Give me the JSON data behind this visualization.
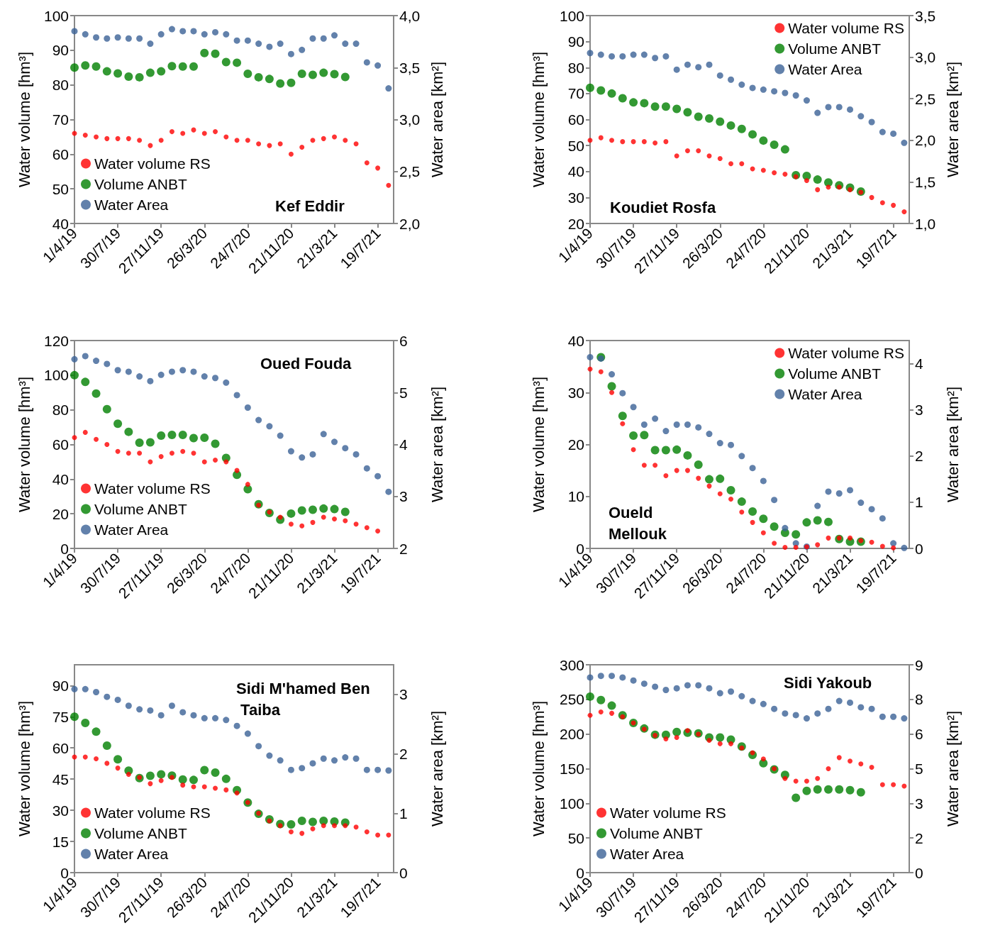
{
  "chart_data": [
    {
      "type": "scatter",
      "title": "Kef Eddir",
      "ylabel": "Water volume [hm³]",
      "y2label": "Water area [km²]",
      "legend": "bottom left",
      "marker": "circle",
      "x": [
        "2019-04-01",
        "2019-05-01",
        "2019-05-31",
        "2019-06-30",
        "2019-07-30",
        "2019-08-29",
        "2019-09-28",
        "2019-10-28",
        "2019-11-27",
        "2019-12-27",
        "2020-01-26",
        "2020-02-25",
        "2020-03-26",
        "2020-04-25",
        "2020-05-25",
        "2020-06-24",
        "2020-07-24",
        "2020-08-23",
        "2020-09-22",
        "2020-10-22",
        "2020-11-21",
        "2020-12-21",
        "2021-01-20",
        "2021-02-19",
        "2021-03-21",
        "2021-04-20",
        "2021-05-20",
        "2021-06-19",
        "2021-07-19",
        "2021-08-18"
      ],
      "xlim": [
        "2019-04-01",
        "2021-09-01"
      ],
      "xticks": [
        {
          "value": "2019-04-01",
          "label": "1/4/19"
        },
        {
          "value": "2019-07-30",
          "label": "30/7/19"
        },
        {
          "value": "2019-11-27",
          "label": "27/11/19"
        },
        {
          "value": "2020-03-26",
          "label": "26/3/20"
        },
        {
          "value": "2020-07-24",
          "label": "24/7/20"
        },
        {
          "value": "2020-11-21",
          "label": "21/11/20"
        },
        {
          "value": "2021-03-21",
          "label": "21/3/21"
        },
        {
          "value": "2021-07-19",
          "label": "19/7/21"
        }
      ],
      "ylim": [
        40,
        100
      ],
      "yticks": [
        40,
        50,
        60,
        70,
        80,
        90,
        100
      ],
      "y2lim": [
        2,
        4
      ],
      "y2ticks": [
        {
          "value": 2,
          "label": "2,0"
        },
        {
          "value": 2.5,
          "label": "2,5"
        },
        {
          "value": 3,
          "label": "3,0"
        },
        {
          "value": 3.5,
          "label": "3,5"
        },
        {
          "value": 4,
          "label": "4,0"
        }
      ],
      "series": [
        {
          "name": "Water volume RS",
          "color": "#ff0000",
          "values": [
            66,
            65.5,
            65,
            64.5,
            64.5,
            64.5,
            64,
            62.5,
            64,
            66.5,
            66,
            67,
            66,
            66.5,
            65,
            64,
            64,
            63,
            62.5,
            63,
            60,
            62,
            64,
            64.5,
            65,
            64,
            63,
            57.5,
            56,
            51
          ]
        },
        {
          "name": "Volume ANBT",
          "color": "#008000",
          "values": [
            85,
            85.6,
            85.3,
            83.9,
            83.3,
            82.4,
            82.2,
            83.5,
            83.9,
            85.4,
            85.3,
            85.3,
            89.2,
            89,
            86.6,
            86.4,
            83.2,
            82.2,
            81.7,
            80.4,
            80.6,
            83.2,
            82.9,
            83.5,
            83.1,
            82.3,
            null,
            null,
            null,
            null
          ]
        },
        {
          "name": "Water Area",
          "color": "#3b6296",
          "axis": "y2",
          "values": [
            3.85,
            3.82,
            3.79,
            3.78,
            3.79,
            3.78,
            3.78,
            3.73,
            3.82,
            3.87,
            3.85,
            3.85,
            3.82,
            3.84,
            3.82,
            3.76,
            3.76,
            3.73,
            3.7,
            3.73,
            3.63,
            3.67,
            3.78,
            3.78,
            3.81,
            3.73,
            3.73,
            3.55,
            3.52,
            3.3
          ]
        }
      ]
    },
    {
      "type": "scatter",
      "title": "Koudiet Rosfa",
      "ylabel": "Water volume [hm³]",
      "y2label": "Water area [km²]",
      "legend": "top right",
      "marker": "circle",
      "x": [
        "2019-04-01",
        "2019-05-01",
        "2019-05-31",
        "2019-06-30",
        "2019-07-30",
        "2019-08-29",
        "2019-09-28",
        "2019-10-28",
        "2019-11-27",
        "2019-12-27",
        "2020-01-26",
        "2020-02-25",
        "2020-03-26",
        "2020-04-25",
        "2020-05-25",
        "2020-06-24",
        "2020-07-24",
        "2020-08-23",
        "2020-09-22",
        "2020-10-22",
        "2020-11-21",
        "2020-12-21",
        "2021-01-20",
        "2021-02-19",
        "2021-03-21",
        "2021-04-20",
        "2021-05-20",
        "2021-06-19",
        "2021-07-19",
        "2021-08-18"
      ],
      "xlim": [
        "2019-04-01",
        "2021-09-01"
      ],
      "xticks": [
        {
          "value": "2019-04-01",
          "label": "1/4/19"
        },
        {
          "value": "2019-07-30",
          "label": "30/7/19"
        },
        {
          "value": "2019-11-27",
          "label": "27/11/19"
        },
        {
          "value": "2020-03-26",
          "label": "26/3/20"
        },
        {
          "value": "2020-07-24",
          "label": "24/7/20"
        },
        {
          "value": "2020-11-21",
          "label": "21/11/20"
        },
        {
          "value": "2021-03-21",
          "label": "21/3/21"
        },
        {
          "value": "2021-07-19",
          "label": "19/7/21"
        }
      ],
      "ylim": [
        20,
        100
      ],
      "yticks": [
        20,
        30,
        40,
        50,
        60,
        70,
        80,
        90,
        100
      ],
      "y2lim": [
        1,
        3.5
      ],
      "y2ticks": [
        {
          "value": 1,
          "label": "1,0"
        },
        {
          "value": 1.5,
          "label": "1,5"
        },
        {
          "value": 2,
          "label": "2,0"
        },
        {
          "value": 2.5,
          "label": "2,5"
        },
        {
          "value": 3,
          "label": "3,0"
        },
        {
          "value": 3.5,
          "label": "3,5"
        }
      ],
      "series": [
        {
          "name": "Water volume RS",
          "color": "#ff0000",
          "values": [
            52,
            53,
            52,
            51.5,
            51.5,
            51.5,
            51,
            51.5,
            46,
            48,
            48,
            46,
            45,
            43,
            43,
            41,
            40.5,
            39.5,
            39,
            38,
            36.5,
            33,
            34,
            34,
            33,
            32,
            30,
            28,
            27,
            24.5
          ]
        },
        {
          "name": "Volume ANBT",
          "color": "#008000",
          "values": [
            72.2,
            71.2,
            70,
            68.2,
            66.6,
            66.3,
            65,
            65,
            64.1,
            62.8,
            61.1,
            60.4,
            59.2,
            57.7,
            56.4,
            54.3,
            51.9,
            50.3,
            48.5,
            38.6,
            38.3,
            36.9,
            35.8,
            34.7,
            33.8,
            32.3,
            null,
            null,
            null,
            null
          ]
        },
        {
          "name": "Water Area",
          "color": "#3b6296",
          "axis": "y2",
          "values": [
            3.05,
            3.03,
            3.01,
            3.01,
            3.03,
            3.03,
            2.99,
            3.01,
            2.85,
            2.91,
            2.88,
            2.91,
            2.78,
            2.73,
            2.67,
            2.63,
            2.61,
            2.59,
            2.57,
            2.54,
            2.48,
            2.33,
            2.4,
            2.4,
            2.37,
            2.29,
            2.22,
            2.1,
            2.08,
            1.97
          ]
        }
      ]
    },
    {
      "type": "scatter",
      "title": "Oued Fouda",
      "ylabel": "Water volume [hm³]",
      "y2label": "Water area [km²]",
      "legend": "bottom left",
      "marker": "circle",
      "x": [
        "2019-04-01",
        "2019-05-01",
        "2019-05-31",
        "2019-06-30",
        "2019-07-30",
        "2019-08-29",
        "2019-09-28",
        "2019-10-28",
        "2019-11-27",
        "2019-12-27",
        "2020-01-26",
        "2020-02-25",
        "2020-03-26",
        "2020-04-25",
        "2020-05-25",
        "2020-06-24",
        "2020-07-24",
        "2020-08-23",
        "2020-09-22",
        "2020-10-22",
        "2020-11-21",
        "2020-12-21",
        "2021-01-20",
        "2021-02-19",
        "2021-03-21",
        "2021-04-20",
        "2021-05-20",
        "2021-06-19",
        "2021-07-19",
        "2021-08-18"
      ],
      "xlim": [
        "2019-04-01",
        "2021-09-01"
      ],
      "xticks": [
        {
          "value": "2019-04-01",
          "label": "1/4/19"
        },
        {
          "value": "2019-07-30",
          "label": "30/7/19"
        },
        {
          "value": "2019-11-27",
          "label": "27/11/19"
        },
        {
          "value": "2020-03-26",
          "label": "26/3/20"
        },
        {
          "value": "2020-07-24",
          "label": "24/7/20"
        },
        {
          "value": "2020-11-21",
          "label": "21/11/20"
        },
        {
          "value": "2021-03-21",
          "label": "21/3/21"
        },
        {
          "value": "2021-07-19",
          "label": "19/7/21"
        }
      ],
      "ylim": [
        0,
        120
      ],
      "yticks": [
        0,
        20,
        40,
        60,
        80,
        100,
        120
      ],
      "y2lim": [
        2,
        6
      ],
      "y2ticks": [
        2,
        3,
        4,
        5,
        6
      ],
      "series": [
        {
          "name": "Water volume RS",
          "color": "#ff0000",
          "values": [
            64,
            67,
            63,
            60,
            56,
            55,
            55,
            50,
            53,
            55,
            56,
            55,
            50,
            51,
            50,
            45,
            37,
            25,
            21,
            18,
            14,
            13,
            15,
            18,
            17,
            16,
            14,
            12,
            10,
            null
          ]
        },
        {
          "name": "Volume ANBT",
          "color": "#008000",
          "values": [
            100,
            96.1,
            89.4,
            80.4,
            72,
            67.3,
            61,
            61.2,
            65.1,
            65.5,
            65.5,
            63.7,
            63.9,
            60.4,
            52.2,
            42.5,
            34.2,
            25.5,
            20.5,
            16.6,
            20.1,
            21.9,
            22.3,
            23,
            22.7,
            21.1,
            null,
            null,
            null,
            null
          ]
        },
        {
          "name": "Water Area",
          "color": "#3b6296",
          "axis": "y2",
          "values": [
            5.64,
            5.7,
            5.61,
            5.55,
            5.43,
            5.4,
            5.31,
            5.22,
            5.34,
            5.4,
            5.43,
            5.4,
            5.31,
            5.28,
            5.19,
            4.95,
            4.71,
            4.47,
            4.35,
            4.17,
            3.87,
            3.75,
            3.81,
            4.2,
            4.05,
            3.93,
            3.81,
            3.54,
            3.39,
            3.09
          ]
        }
      ]
    },
    {
      "type": "scatter",
      "title": "Oueld Mellouk",
      "ylabel": "Water volume [hm³]",
      "y2label": "Water area [km²]",
      "legend": "top right",
      "marker": "circle",
      "x": [
        "2019-04-01",
        "2019-05-01",
        "2019-05-31",
        "2019-06-30",
        "2019-07-30",
        "2019-08-29",
        "2019-09-28",
        "2019-10-28",
        "2019-11-27",
        "2019-12-27",
        "2020-01-26",
        "2020-02-25",
        "2020-03-26",
        "2020-04-25",
        "2020-05-25",
        "2020-06-24",
        "2020-07-24",
        "2020-08-23",
        "2020-09-22",
        "2020-10-22",
        "2020-11-21",
        "2020-12-21",
        "2021-01-20",
        "2021-02-19",
        "2021-03-21",
        "2021-04-20",
        "2021-05-20",
        "2021-06-19",
        "2021-07-19",
        "2021-08-18"
      ],
      "xlim": [
        "2019-04-01",
        "2021-09-01"
      ],
      "xticks": [
        {
          "value": "2019-04-01",
          "label": "1/4/19"
        },
        {
          "value": "2019-07-30",
          "label": "30/7/19"
        },
        {
          "value": "2019-11-27",
          "label": "27/11/19"
        },
        {
          "value": "2020-03-26",
          "label": "26/3/20"
        },
        {
          "value": "2020-07-24",
          "label": "24/7/20"
        },
        {
          "value": "2020-11-21",
          "label": "21/11/20"
        },
        {
          "value": "2021-03-21",
          "label": "21/3/21"
        },
        {
          "value": "2021-07-19",
          "label": "19/7/21"
        }
      ],
      "ylim": [
        0,
        40
      ],
      "yticks": [
        0,
        10,
        20,
        30,
        40
      ],
      "y2lim": [
        0,
        4.5
      ],
      "y2ticks": [
        0,
        1,
        2,
        3,
        4
      ],
      "series": [
        {
          "name": "Water volume RS",
          "color": "#ff0000",
          "values": [
            34.5,
            34,
            30,
            24,
            19,
            16,
            16,
            14,
            15,
            15,
            13.5,
            12,
            10.5,
            9.5,
            7,
            5,
            3,
            1,
            0.2,
            0.2,
            0.3,
            0.7,
            2,
            2,
            2,
            1.5,
            1.2,
            0.4,
            0.1,
            null
          ]
        },
        {
          "name": "Volume ANBT",
          "color": "#008000",
          "values": [
            null,
            36.8,
            31.2,
            25.5,
            21.7,
            21.8,
            18.9,
            18.9,
            19,
            17.9,
            16.1,
            13.3,
            13.4,
            11.2,
            9,
            7.1,
            5.7,
            4.2,
            3,
            2.7,
            5,
            5.4,
            5.1,
            1.8,
            1.3,
            1.3,
            null,
            null,
            null,
            null
          ]
        },
        {
          "name": "Water Area",
          "color": "#3b6296",
          "axis": "y2",
          "values": [
            4.14,
            4.11,
            3.77,
            3.36,
            3.06,
            2.68,
            2.81,
            2.54,
            2.68,
            2.68,
            2.62,
            2.48,
            2.28,
            2.24,
            2,
            1.74,
            1.46,
            1.05,
            0.44,
            0.11,
            0.04,
            0.92,
            1.23,
            1.19,
            1.26,
            0.99,
            0.85,
            0.65,
            0.11,
            0.01
          ]
        }
      ]
    },
    {
      "type": "scatter",
      "title": "Sidi M'hamed Ben Taiba",
      "ylabel": "Water volume [hm³]",
      "y2label": "Water area [km²]",
      "legend": "bottom left",
      "marker": "circle",
      "x": [
        "2019-04-01",
        "2019-05-01",
        "2019-05-31",
        "2019-06-30",
        "2019-07-30",
        "2019-08-29",
        "2019-09-28",
        "2019-10-28",
        "2019-11-27",
        "2019-12-27",
        "2020-01-26",
        "2020-02-25",
        "2020-03-26",
        "2020-04-25",
        "2020-05-25",
        "2020-06-24",
        "2020-07-24",
        "2020-08-23",
        "2020-09-22",
        "2020-10-22",
        "2020-11-21",
        "2020-12-21",
        "2021-01-20",
        "2021-02-19",
        "2021-03-21",
        "2021-04-20",
        "2021-05-20",
        "2021-06-19",
        "2021-07-19",
        "2021-08-18"
      ],
      "xlim": [
        "2019-04-01",
        "2021-09-01"
      ],
      "xticks": [
        {
          "value": "2019-04-01",
          "label": "1/4/19"
        },
        {
          "value": "2019-07-30",
          "label": "30/7/19"
        },
        {
          "value": "2019-11-27",
          "label": "27/11/19"
        },
        {
          "value": "2020-03-26",
          "label": "26/3/20"
        },
        {
          "value": "2020-07-24",
          "label": "24/7/20"
        },
        {
          "value": "2020-11-21",
          "label": "21/11/20"
        },
        {
          "value": "2021-03-21",
          "label": "21/3/21"
        },
        {
          "value": "2021-07-19",
          "label": "19/7/21"
        }
      ],
      "ylim": [
        0,
        100
      ],
      "yticks": [
        0,
        15,
        30,
        45,
        60,
        75,
        90
      ],
      "y2lim": [
        0,
        3.5
      ],
      "y2ticks": [
        0,
        1,
        2,
        3
      ],
      "series": [
        {
          "name": "Water volume RS",
          "color": "#ff0000",
          "values": [
            55.6,
            55.6,
            54.8,
            52.6,
            50.3,
            47.3,
            45.8,
            42.8,
            44.3,
            45.8,
            42.1,
            41.3,
            41.3,
            40.6,
            39.8,
            38.3,
            33.8,
            28.6,
            24.9,
            22.6,
            19.6,
            18.9,
            21.1,
            22.6,
            22.6,
            22.6,
            21.9,
            19.6,
            18.1,
            18.1
          ]
        },
        {
          "name": "Volume ANBT",
          "color": "#008000",
          "values": [
            75,
            72,
            67.8,
            61.1,
            54.5,
            49.1,
            45.5,
            46.6,
            47.3,
            46.7,
            44.8,
            44.6,
            49.3,
            48.1,
            45.1,
            39.7,
            33.7,
            28.3,
            25.6,
            23.4,
            23.2,
            24.9,
            24.4,
            24.9,
            24.6,
            24.1,
            null,
            null,
            null,
            null
          ]
        },
        {
          "name": "Water Area",
          "color": "#3b6296",
          "axis": "y2",
          "values": [
            3.09,
            3.09,
            3.04,
            2.96,
            2.91,
            2.81,
            2.75,
            2.73,
            2.65,
            2.81,
            2.7,
            2.65,
            2.6,
            2.6,
            2.57,
            2.47,
            2.34,
            2.13,
            1.97,
            1.89,
            1.73,
            1.76,
            1.84,
            1.92,
            1.89,
            1.94,
            1.92,
            1.73,
            1.73,
            1.72
          ]
        }
      ]
    },
    {
      "type": "scatter",
      "title": "Sidi Yakoub",
      "ylabel": "Water volume [hm³]",
      "y2label": "Water area [km²]",
      "legend": "bottom left",
      "marker": "circle",
      "x": [
        "2019-04-01",
        "2019-05-01",
        "2019-05-31",
        "2019-06-30",
        "2019-07-30",
        "2019-08-29",
        "2019-09-28",
        "2019-10-28",
        "2019-11-27",
        "2019-12-27",
        "2020-01-26",
        "2020-02-25",
        "2020-03-26",
        "2020-04-25",
        "2020-05-25",
        "2020-06-24",
        "2020-07-24",
        "2020-08-23",
        "2020-09-22",
        "2020-10-22",
        "2020-11-21",
        "2020-12-21",
        "2021-01-20",
        "2021-02-19",
        "2021-03-21",
        "2021-04-20",
        "2021-05-20",
        "2021-06-19",
        "2021-07-19",
        "2021-08-18"
      ],
      "xlim": [
        "2019-04-01",
        "2021-09-01"
      ],
      "xticks": [
        {
          "value": "2019-04-01",
          "label": "1/4/19"
        },
        {
          "value": "2019-07-30",
          "label": "30/7/19"
        },
        {
          "value": "2019-11-27",
          "label": "27/11/19"
        },
        {
          "value": "2020-03-26",
          "label": "26/3/20"
        },
        {
          "value": "2020-07-24",
          "label": "24/7/20"
        },
        {
          "value": "2020-11-21",
          "label": "21/11/20"
        },
        {
          "value": "2021-03-21",
          "label": "21/3/21"
        },
        {
          "value": "2021-07-19",
          "label": "19/7/21"
        }
      ],
      "ylim": [
        0,
        300
      ],
      "yticks": [
        0,
        50,
        100,
        150,
        200,
        250,
        300
      ],
      "y2lim": [
        0,
        9
      ],
      "y2ticks": [
        0,
        {
          "value": 1.5,
          "label": "2"
        },
        3,
        {
          "value": 4.5,
          "label": "5"
        },
        6,
        {
          "value": 7.5,
          "label": "8"
        },
        9
      ],
      "series": [
        {
          "name": "Water volume RS",
          "color": "#ff0000",
          "values": [
            227,
            232,
            230,
            225,
            216,
            207,
            198,
            193,
            195,
            205,
            200,
            191,
            186,
            186,
            180,
            173,
            164,
            150,
            136,
            132,
            132,
            136,
            150,
            166,
            161,
            157,
            152,
            127,
            127,
            125
          ]
        },
        {
          "name": "Volume ANBT",
          "color": "#008000",
          "values": [
            254,
            249,
            241,
            227,
            216,
            208,
            199,
            199,
            203,
            202,
            201,
            195,
            195,
            192,
            182,
            170,
            158,
            149,
            141,
            108,
            118,
            120,
            120,
            120,
            119,
            116,
            null,
            null,
            null,
            null
          ]
        },
        {
          "name": "Water Area",
          "color": "#3b6296",
          "axis": "y2",
          "values": [
            8.45,
            8.52,
            8.52,
            8.45,
            8.32,
            8.18,
            8.05,
            7.91,
            7.98,
            8.11,
            8.11,
            7.98,
            7.77,
            7.84,
            7.64,
            7.43,
            7.3,
            7.09,
            6.89,
            6.82,
            6.68,
            6.89,
            7.09,
            7.43,
            7.36,
            7.16,
            7.09,
            6.75,
            6.75,
            6.68
          ]
        }
      ]
    }
  ]
}
